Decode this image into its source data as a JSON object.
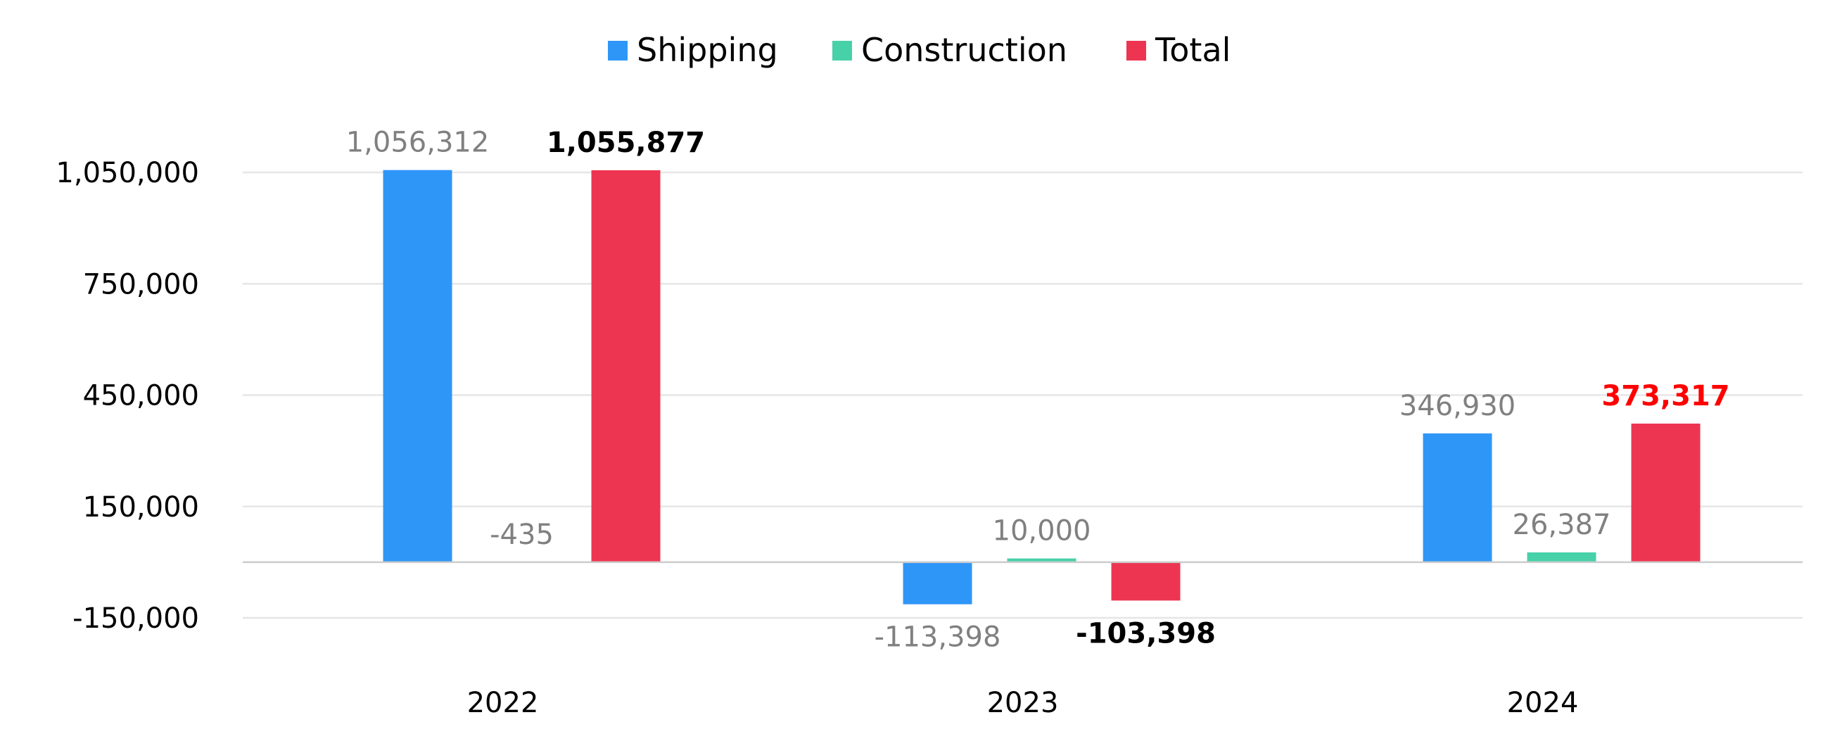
{
  "chart_data": {
    "type": "bar",
    "categories": [
      "2022",
      "2023",
      "2024"
    ],
    "series": [
      {
        "name": "Shipping",
        "color": "#2e96f7",
        "values": [
          1056312,
          -113398,
          346930
        ]
      },
      {
        "name": "Construction",
        "color": "#47d1a8",
        "values": [
          -435,
          10000,
          26387
        ]
      },
      {
        "name": "Total",
        "color": "#ed3551",
        "values": [
          1055877,
          -103398,
          373317
        ]
      }
    ],
    "data_labels": [
      [
        "1,056,312",
        "-113,398",
        "346,930"
      ],
      [
        "-435",
        "10,000",
        "26,387"
      ],
      [
        "1,055,877",
        "-103,398",
        "373,317"
      ]
    ],
    "data_label_colors": [
      [
        "#808080",
        "#808080",
        "#808080"
      ],
      [
        "#808080",
        "#808080",
        "#808080"
      ],
      [
        "#000000",
        "#000000",
        "#ff0000"
      ]
    ],
    "yticks": [
      -150000,
      150000,
      450000,
      750000,
      1050000
    ],
    "ytick_labels": [
      "-150,000",
      "150,000",
      "450,000",
      "750,000",
      "1,050,000"
    ],
    "ylim": [
      -150000,
      1050000
    ],
    "title": "",
    "xlabel": "",
    "ylabel": "",
    "legend_position": "top-center",
    "grid": true,
    "gridline_color": "#e6e6e6",
    "zero_line_color": "#cccccc"
  }
}
